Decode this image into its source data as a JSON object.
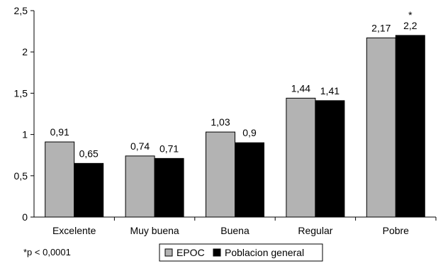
{
  "chart_data": {
    "type": "bar",
    "categories": [
      "Excelente",
      "Muy buena",
      "Buena",
      "Regular",
      "Pobre"
    ],
    "series": [
      {
        "name": "EPOC",
        "color": "#b3b3b3",
        "values": [
          0.91,
          0.74,
          1.03,
          1.44,
          2.17
        ],
        "labels": [
          "0,91",
          "0,74",
          "1,03",
          "1,44",
          "2,17"
        ]
      },
      {
        "name": "Poblacion general",
        "color": "#000000",
        "values": [
          0.65,
          0.71,
          0.9,
          1.41,
          2.2
        ],
        "labels": [
          "0,65",
          "0,71",
          "0,9",
          "1,41",
          "2,2"
        ]
      }
    ],
    "ylim": [
      0,
      2.5
    ],
    "yticks": [
      0,
      0.5,
      1,
      1.5,
      2,
      2.5
    ],
    "ytick_labels": [
      "0",
      "0,5",
      "1",
      "1,5",
      "2",
      "2,5"
    ],
    "annotations": [
      {
        "text": "*",
        "category": "Pobre",
        "series": "Poblacion general"
      }
    ],
    "footnote": "*p < 0,0001",
    "legend_placement": "bottom-center",
    "grid": false,
    "title": "",
    "xlabel": "",
    "ylabel": ""
  }
}
